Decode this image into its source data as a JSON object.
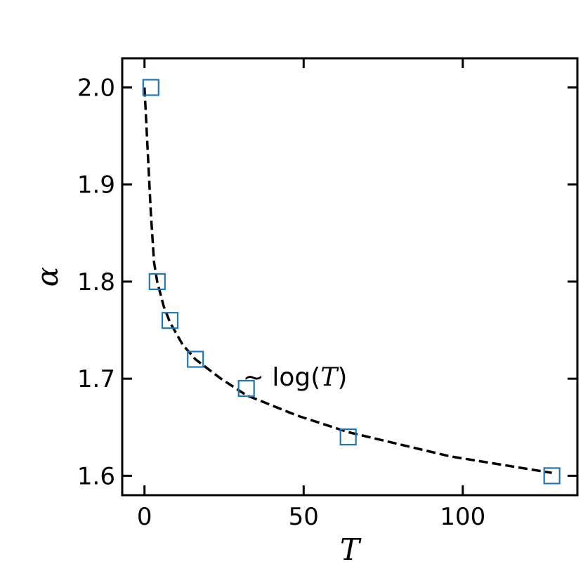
{
  "chart_data": {
    "type": "scatter",
    "title": "",
    "xlabel": "T",
    "ylabel": "α",
    "xlim": [
      -7,
      136
    ],
    "ylim": [
      1.58,
      2.03
    ],
    "xticks": [
      0,
      50,
      100
    ],
    "yticks": [
      1.6,
      1.7,
      1.8,
      1.9,
      2.0
    ],
    "xtick_labels": [
      "0",
      "50",
      "100"
    ],
    "ytick_labels": [
      "1.6",
      "1.7",
      "1.8",
      "1.9",
      "2.0"
    ],
    "grid": false,
    "series": [
      {
        "marker": "square-open",
        "color": "#1f77b4",
        "x": [
          2,
          4,
          8,
          16,
          32,
          64,
          128
        ],
        "y": [
          2.0,
          1.8,
          1.76,
          1.72,
          1.69,
          1.64,
          1.6
        ]
      }
    ],
    "fit_curve": {
      "style": "dashed",
      "color": "#000000",
      "x": [
        0,
        2,
        3,
        4,
        6,
        8,
        12,
        16,
        24,
        32,
        48,
        64,
        96,
        128
      ],
      "y": [
        2.0,
        1.87,
        1.82,
        1.8,
        1.775,
        1.758,
        1.735,
        1.72,
        1.7,
        1.683,
        1.662,
        1.645,
        1.62,
        1.603
      ]
    },
    "annotation": {
      "prefix": "~ log(",
      "var": "T",
      "suffix": ")",
      "x": 34,
      "y": 1.7
    }
  }
}
